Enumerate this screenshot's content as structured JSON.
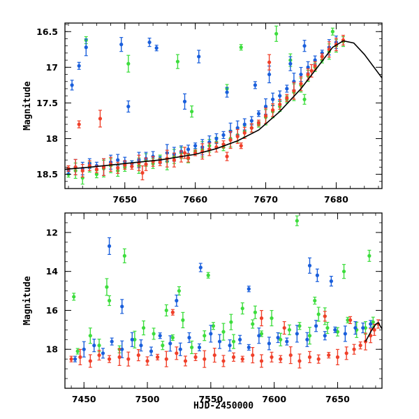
{
  "colors": {
    "blue": "#1a5fdc",
    "green": "#3ddd3d",
    "red": "#f0402a",
    "model": "#000000",
    "frame": "#000000"
  },
  "chart_data": [
    {
      "type": "scatter",
      "xlim": [
        7641.5,
        7686.5
      ],
      "ylim": [
        18.7,
        16.38
      ],
      "y_inverted": true,
      "xticks": [
        7650,
        7660,
        7670,
        7680
      ],
      "yticks": [
        16.5,
        17,
        17.5,
        18,
        18.5
      ],
      "xlabel": "",
      "ylabel": "Magnitude",
      "model_curve": {
        "x": [
          7641.5,
          7645,
          7650,
          7655,
          7660,
          7663,
          7666,
          7669,
          7672,
          7675,
          7677.5,
          7679.5,
          7681,
          7682.5,
          7684,
          7686.5
        ],
        "y": [
          18.43,
          18.4,
          18.35,
          18.3,
          18.22,
          18.14,
          18.03,
          17.88,
          17.62,
          17.3,
          16.98,
          16.72,
          16.63,
          16.66,
          16.82,
          17.15
        ]
      },
      "series": [
        {
          "color_key": "red",
          "x": [
            7642,
            7643,
            7644,
            7645,
            7646,
            7647,
            7648,
            7649,
            7650,
            7651,
            7652,
            7653,
            7654,
            7655,
            7656,
            7657,
            7658,
            7659,
            7660,
            7661,
            7662,
            7663,
            7664,
            7665,
            7666,
            7667,
            7668,
            7669,
            7670,
            7671,
            7672,
            7673,
            7674,
            7675,
            7676,
            7677,
            7678,
            7679,
            7680,
            7681,
            7643.5,
            7646.5,
            7652.5,
            7658.5,
            7664.5,
            7666.5,
            7670.5,
            7676.5
          ],
          "y": [
            18.42,
            18.4,
            18.45,
            18.38,
            18.43,
            18.4,
            18.36,
            18.41,
            18.37,
            18.39,
            18.34,
            18.36,
            18.32,
            18.33,
            18.28,
            18.3,
            18.25,
            18.27,
            18.2,
            18.18,
            18.15,
            18.12,
            18.08,
            18.02,
            17.97,
            17.92,
            17.85,
            17.78,
            17.68,
            17.6,
            17.52,
            17.43,
            17.33,
            17.23,
            17.1,
            16.98,
            16.85,
            16.75,
            16.68,
            16.62,
            17.8,
            17.72,
            18.48,
            18.2,
            18.25,
            18.1,
            16.93,
            17.05
          ]
        },
        {
          "color_key": "blue",
          "x": [
            7642,
            7643,
            7644,
            7645,
            7646,
            7647,
            7648,
            7649,
            7650,
            7651,
            7652,
            7653,
            7654,
            7655,
            7656,
            7657,
            7658,
            7659,
            7660,
            7661,
            7662,
            7663,
            7664,
            7665,
            7666,
            7667,
            7668,
            7669,
            7670,
            7671,
            7672,
            7673,
            7674,
            7675,
            7676,
            7677,
            7678,
            7679,
            7680,
            7642.5,
            7643.5,
            7644.5,
            7649.5,
            7650.5,
            7653.5,
            7654.5,
            7658.5,
            7660.5,
            7664.5,
            7668.5,
            7670.5,
            7673.5,
            7675.5
          ],
          "y": [
            18.45,
            18.4,
            18.42,
            18.35,
            18.38,
            18.4,
            18.33,
            18.3,
            18.32,
            18.35,
            18.3,
            18.28,
            18.25,
            18.3,
            18.2,
            18.22,
            18.18,
            18.15,
            18.1,
            18.12,
            18.05,
            18.0,
            17.95,
            17.9,
            17.85,
            17.8,
            17.75,
            17.65,
            17.55,
            17.45,
            17.4,
            17.3,
            17.2,
            17.1,
            17.0,
            16.9,
            16.8,
            16.72,
            16.65,
            17.25,
            16.98,
            16.72,
            16.68,
            17.55,
            16.65,
            16.73,
            17.48,
            16.85,
            17.35,
            17.25,
            17.1,
            16.95,
            16.7
          ]
        },
        {
          "color_key": "green",
          "x": [
            7642,
            7643,
            7644,
            7645,
            7646,
            7647,
            7648,
            7649,
            7650,
            7651,
            7652,
            7653,
            7654,
            7655,
            7656,
            7657,
            7658,
            7659,
            7660,
            7661,
            7662,
            7663,
            7664,
            7665,
            7666,
            7667,
            7668,
            7669,
            7670,
            7671,
            7672,
            7673,
            7674,
            7675,
            7676,
            7677,
            7678,
            7679,
            7680,
            7681,
            7644.5,
            7650.5,
            7657.5,
            7659.5,
            7664.5,
            7666.5,
            7671.5,
            7673.5,
            7675.5,
            7679.5
          ],
          "y": [
            18.5,
            18.45,
            18.55,
            18.4,
            18.5,
            18.42,
            18.38,
            18.45,
            18.4,
            18.35,
            18.38,
            18.3,
            18.35,
            18.28,
            18.32,
            18.25,
            18.2,
            18.28,
            18.18,
            18.15,
            18.1,
            18.05,
            18.12,
            18.0,
            17.95,
            17.9,
            17.85,
            17.8,
            17.7,
            17.62,
            17.55,
            17.45,
            17.35,
            17.25,
            17.12,
            17.0,
            16.9,
            16.78,
            16.7,
            16.64,
            16.62,
            16.95,
            16.92,
            17.62,
            17.3,
            16.72,
            16.53,
            16.9,
            17.45,
            16.5
          ]
        }
      ]
    },
    {
      "type": "scatter",
      "xlim": [
        7435,
        7685
      ],
      "ylim": [
        20.0,
        11.0
      ],
      "y_inverted": true,
      "xticks": [
        7450,
        7500,
        7550,
        7600,
        7650
      ],
      "yticks": [
        12,
        14,
        16,
        18
      ],
      "xlabel": "HJD-2450000",
      "ylabel": "Magnitude",
      "model_curve": {
        "x": [
          7672,
          7677,
          7680,
          7682,
          7685
        ],
        "y": [
          17.6,
          17.0,
          16.72,
          16.63,
          16.95
        ]
      },
      "series": [
        {
          "color_key": "green",
          "x": [
            7445,
            7455,
            7462,
            7470,
            7478,
            7490,
            7497,
            7505,
            7512,
            7520,
            7528,
            7535,
            7545,
            7552,
            7560,
            7568,
            7575,
            7583,
            7590,
            7598,
            7605,
            7612,
            7620,
            7628,
            7635,
            7642,
            7650,
            7658,
            7665,
            7672,
            7678,
            7442,
            7468,
            7482,
            7515,
            7525,
            7548,
            7566,
            7585,
            7618,
            7632,
            7640,
            7655,
            7675
          ],
          "y": [
            18.1,
            17.3,
            17.8,
            15.5,
            18.0,
            17.5,
            16.9,
            17.2,
            17.8,
            17.4,
            16.5,
            17.9,
            17.3,
            16.8,
            17.1,
            17.6,
            15.9,
            16.7,
            17.2,
            16.4,
            17.5,
            17.0,
            16.8,
            17.3,
            16.2,
            16.9,
            17.1,
            16.5,
            17.0,
            16.9,
            16.6,
            15.3,
            14.8,
            13.2,
            16.0,
            15.0,
            14.2,
            16.6,
            16.1,
            11.4,
            15.5,
            16.3,
            14.0,
            13.2
          ]
        },
        {
          "color_key": "blue",
          "x": [
            7443,
            7450,
            7458,
            7465,
            7472,
            7480,
            7488,
            7495,
            7503,
            7510,
            7518,
            7526,
            7533,
            7541,
            7550,
            7557,
            7565,
            7573,
            7580,
            7588,
            7596,
            7603,
            7610,
            7618,
            7626,
            7633,
            7640,
            7648,
            7656,
            7664,
            7670,
            7676,
            7470,
            7480,
            7523,
            7542,
            7580,
            7628,
            7634,
            7645
          ],
          "y": [
            18.5,
            18.0,
            17.8,
            18.2,
            17.6,
            18.0,
            17.5,
            17.8,
            18.1,
            17.3,
            17.7,
            18.0,
            17.4,
            17.9,
            17.2,
            17.6,
            17.8,
            17.5,
            17.9,
            17.3,
            17.7,
            17.4,
            17.6,
            17.2,
            17.5,
            16.8,
            17.3,
            17.0,
            17.2,
            16.9,
            16.9,
            16.7,
            12.7,
            15.8,
            15.5,
            13.8,
            14.9,
            13.7,
            14.2,
            14.5
          ]
        },
        {
          "color_key": "red",
          "x": [
            7440,
            7447,
            7455,
            7462,
            7470,
            7478,
            7485,
            7493,
            7500,
            7508,
            7515,
            7523,
            7530,
            7538,
            7545,
            7553,
            7560,
            7568,
            7575,
            7583,
            7590,
            7598,
            7605,
            7613,
            7620,
            7628,
            7635,
            7643,
            7650,
            7657,
            7663,
            7668,
            7672,
            7676,
            7679,
            7682,
            7520,
            7590,
            7608,
            7640,
            7660
          ],
          "y": [
            18.5,
            18.4,
            18.6,
            18.3,
            18.5,
            18.4,
            18.5,
            18.3,
            18.6,
            18.4,
            18.5,
            18.2,
            18.6,
            18.4,
            18.5,
            18.3,
            18.6,
            18.4,
            18.5,
            18.3,
            18.6,
            18.4,
            18.5,
            18.3,
            18.6,
            18.4,
            18.5,
            18.3,
            18.4,
            18.2,
            18.0,
            17.8,
            17.6,
            17.3,
            17.0,
            16.7,
            16.1,
            16.4,
            16.9,
            16.3,
            16.5
          ]
        }
      ]
    }
  ]
}
